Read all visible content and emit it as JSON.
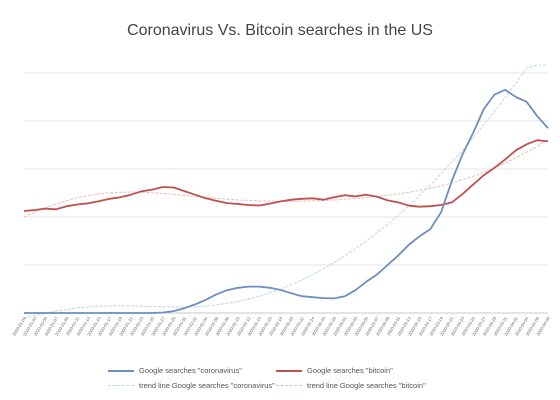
{
  "chart_data": {
    "type": "line",
    "title": "Coronavirus Vs. Bitcoin searches in the US",
    "xlabel": "",
    "ylabel": "",
    "grid": true,
    "legend_position": "bottom",
    "x": [
      "2020-01-01",
      "2020-01-03",
      "2020-01-05",
      "2020-01-07",
      "2020-01-09",
      "2020-01-11",
      "2020-01-13",
      "2020-01-15",
      "2020-01-17",
      "2020-01-19",
      "2020-01-21",
      "2020-01-23",
      "2020-01-25",
      "2020-01-27",
      "2020-01-29",
      "2020-01-31",
      "2020-02-02",
      "2020-02-04",
      "2020-02-06",
      "2020-02-08",
      "2020-02-10",
      "2020-02-12",
      "2020-02-14",
      "2020-02-16",
      "2020-02-18",
      "2020-02-20",
      "2020-02-22",
      "2020-02-24",
      "2020-02-26",
      "2020-02-28",
      "2020-03-01",
      "2020-03-03",
      "2020-03-05",
      "2020-03-07",
      "2020-03-09",
      "2020-03-11",
      "2020-03-13",
      "2020-03-15",
      "2020-03-17",
      "2020-03-19",
      "2020-03-21",
      "2020-03-23",
      "2020-03-25",
      "2020-03-27",
      "2020-03-29",
      "2020-03-31",
      "2020-04-02",
      "2020-04-04",
      "2020-04-06",
      "2020-04-08"
    ],
    "x_tick_labels": [
      "2020-01-01",
      "2020-01-03",
      "2020-01-05",
      "2020-01-07",
      "2020-01-09",
      "2020-01-11",
      "2020-01-13",
      "2020-01-15",
      "2020-01-17",
      "2020-01-19",
      "2020-01-21",
      "2020-01-23",
      "2020-01-25",
      "2020-01-27",
      "2020-01-29",
      "2020-01-31",
      "2020-02-02",
      "2020-02-04",
      "2020-02-06",
      "2020-02-08",
      "2020-02-10",
      "2020-02-12",
      "2020-02-14",
      "2020-02-16",
      "2020-02-18",
      "2020-02-20",
      "2020-02-22",
      "2020-02-24",
      "2020-02-26",
      "2020-02-28",
      "2020-03-01",
      "2020-03-03",
      "2020-03-05",
      "2020-03-07",
      "2020-03-09",
      "2020-03-11",
      "2020-03-13",
      "2020-03-15",
      "2020-03-17",
      "2020-03-19",
      "2020-03-21",
      "2020-03-23",
      "2020-03-25",
      "2020-03-27",
      "2020-03-29",
      "2020-03-31",
      "2020-04-02",
      "2020-04-04",
      "2020-04-06",
      "2020-04-08"
    ],
    "ylim": [
      0,
      100
    ],
    "y_gridlines": [
      0,
      20,
      40,
      60,
      80,
      100
    ],
    "series": [
      {
        "name": "Google searches \"coronavirus\"",
        "color": "#6a8fc0",
        "style": "solid",
        "values": [
          0,
          0,
          0,
          0,
          0,
          0,
          0,
          0,
          0,
          0,
          0,
          0,
          0,
          0.2,
          0.8,
          2,
          3.6,
          5.5,
          7.8,
          9.5,
          10.5,
          11,
          11,
          10.5,
          9.6,
          8.2,
          7,
          6.6,
          6.2,
          6.1,
          7,
          9.5,
          13,
          16,
          20,
          24,
          28.5,
          32,
          35,
          42,
          55,
          66,
          75,
          85,
          91,
          93,
          90,
          88,
          82,
          77
        ]
      },
      {
        "name": "Google searches \"bitcoin\"",
        "color": "#c0504d",
        "style": "solid",
        "values": [
          42.5,
          42.9,
          43.5,
          43.2,
          44.5,
          45.2,
          45.7,
          46.6,
          47.6,
          48.2,
          49.3,
          50.7,
          51.4,
          52.5,
          52.3,
          50.8,
          49.3,
          47.8,
          46.7,
          45.8,
          45.4,
          45.0,
          44.8,
          45.6,
          46.5,
          47.2,
          47.6,
          47.8,
          47.2,
          48.2,
          49.1,
          48.6,
          49.3,
          48.5,
          46.9,
          46.1,
          44.7,
          44.3,
          44.5,
          45.0,
          46.1,
          49.5,
          53.5,
          57.4,
          60.5,
          64.0,
          67.8,
          70.3,
          72.0,
          71.5
        ]
      },
      {
        "name": "trend line Google searches \"coronavirus\"",
        "color": "#c2d3ea",
        "style": "trend",
        "values": [
          -2,
          -1,
          0,
          0.8,
          1.5,
          2.1,
          2.5,
          2.8,
          2.9,
          3.0,
          2.9,
          2.8,
          2.7,
          2.6,
          2.5,
          2.5,
          2.6,
          2.9,
          3.4,
          4.0,
          4.8,
          5.8,
          7.0,
          8.4,
          10.0,
          11.8,
          13.8,
          16.0,
          18.4,
          21.0,
          23.8,
          26.8,
          30.0,
          33.4,
          37.0,
          40.8,
          44.8,
          49.0,
          53.4,
          58.0,
          62.8,
          67.8,
          73.0,
          78.4,
          84.0,
          89.8,
          95.8,
          102,
          108,
          114
        ]
      },
      {
        "name": "trend line Google searches \"bitcoin\"",
        "color": "#e8bcbc",
        "style": "trend",
        "values": [
          40,
          42,
          43.8,
          45.4,
          46.8,
          48.0,
          48.9,
          49.6,
          50.1,
          50.3,
          50.4,
          50.3,
          50.1,
          49.8,
          49.4,
          49.0,
          48.6,
          48.2,
          47.8,
          47.4,
          47.1,
          46.9,
          46.7,
          46.6,
          46.5,
          46.5,
          46.6,
          46.7,
          46.9,
          47.1,
          47.4,
          47.7,
          48.1,
          48.5,
          49.0,
          49.6,
          50.3,
          51.1,
          52.0,
          53.0,
          54.2,
          55.5,
          57.0,
          58.7,
          60.5,
          62.5,
          64.7,
          67.0,
          69.5,
          72.2
        ]
      }
    ]
  }
}
